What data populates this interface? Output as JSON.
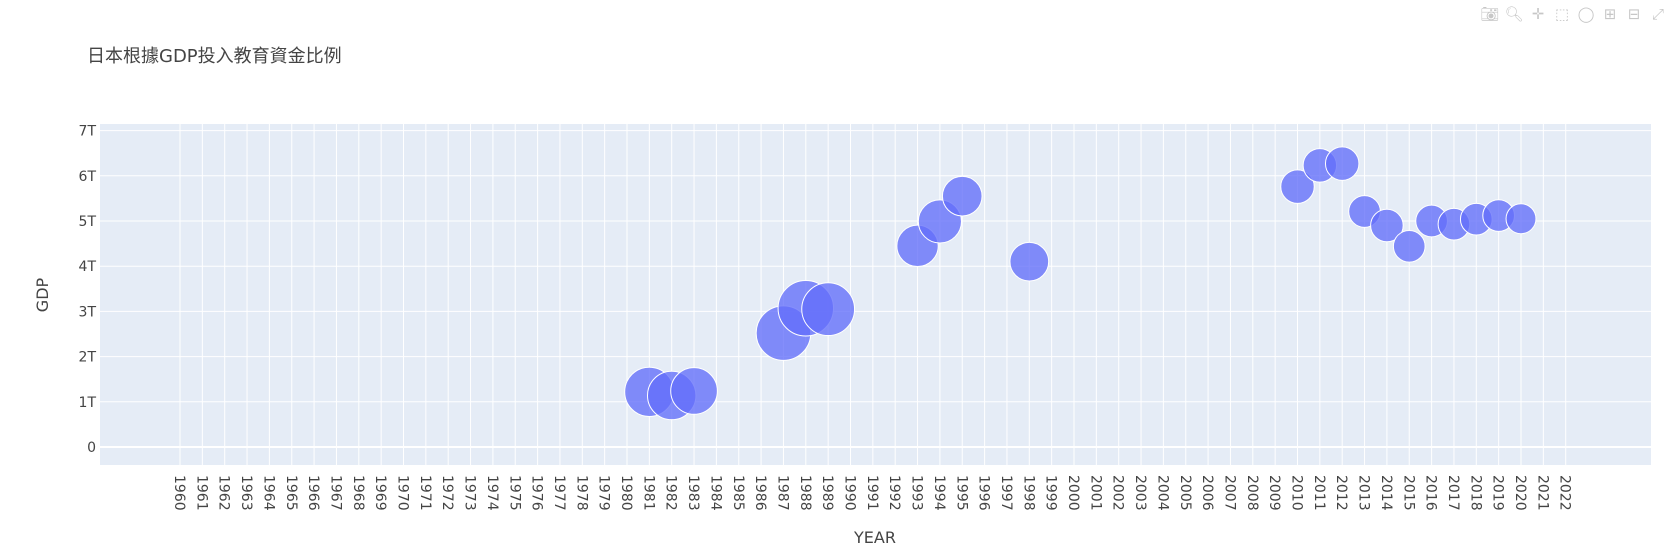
{
  "toolbar": {
    "icons": [
      "camera-icon",
      "zoom-icon",
      "pan-icon",
      "box-select-icon",
      "lasso-icon",
      "zoom-in-icon",
      "zoom-out-icon",
      "autoscale-icon"
    ]
  },
  "chart_data": {
    "type": "scatter",
    "title": "日本根據GDP投入教育資金比例",
    "xlabel": "YEAR",
    "ylabel": "GDP",
    "x_categories": [
      "1960",
      "1961",
      "1962",
      "1963",
      "1964",
      "1965",
      "1966",
      "1967",
      "1968",
      "1969",
      "1970",
      "1971",
      "1972",
      "1973",
      "1974",
      "1975",
      "1976",
      "1977",
      "1978",
      "1979",
      "1980",
      "1981",
      "1982",
      "1983",
      "1984",
      "1985",
      "1986",
      "1987",
      "1988",
      "1989",
      "1990",
      "1991",
      "1992",
      "1993",
      "1994",
      "1995",
      "1996",
      "1997",
      "1998",
      "1999",
      "2000",
      "2001",
      "2002",
      "2003",
      "2004",
      "2005",
      "2006",
      "2007",
      "2008",
      "2009",
      "2010",
      "2011",
      "2012",
      "2013",
      "2014",
      "2015",
      "2016",
      "2017",
      "2018",
      "2019",
      "2020",
      "2021",
      "2022"
    ],
    "y_ticks": [
      0,
      1,
      2,
      3,
      4,
      5,
      6,
      7
    ],
    "y_tick_labels": [
      "0",
      "1T",
      "2T",
      "3T",
      "4T",
      "5T",
      "6T",
      "7T"
    ],
    "ylim": [
      -0.4,
      7.1
    ],
    "marker_color": "#636efa",
    "grid": true,
    "points": [
      {
        "x": "1981",
        "y": 1.22,
        "size": 5.6
      },
      {
        "x": "1982",
        "y": 1.14,
        "size": 5.5
      },
      {
        "x": "1983",
        "y": 1.24,
        "size": 5.3
      },
      {
        "x": "1987",
        "y": 2.52,
        "size": 6.2
      },
      {
        "x": "1988",
        "y": 3.07,
        "size": 6.3
      },
      {
        "x": "1989",
        "y": 3.05,
        "size": 6.0
      },
      {
        "x": "1993",
        "y": 4.45,
        "size": 4.7
      },
      {
        "x": "1994",
        "y": 4.99,
        "size": 4.9
      },
      {
        "x": "1995",
        "y": 5.55,
        "size": 4.5
      },
      {
        "x": "1998",
        "y": 4.1,
        "size": 4.4
      },
      {
        "x": "2010",
        "y": 5.76,
        "size": 3.8
      },
      {
        "x": "2011",
        "y": 6.23,
        "size": 3.8
      },
      {
        "x": "2012",
        "y": 6.27,
        "size": 3.8
      },
      {
        "x": "2013",
        "y": 5.21,
        "size": 3.6
      },
      {
        "x": "2014",
        "y": 4.9,
        "size": 3.7
      },
      {
        "x": "2015",
        "y": 4.44,
        "size": 3.6
      },
      {
        "x": "2016",
        "y": 5.0,
        "size": 3.6
      },
      {
        "x": "2017",
        "y": 4.93,
        "size": 3.6
      },
      {
        "x": "2018",
        "y": 5.04,
        "size": 3.6
      },
      {
        "x": "2019",
        "y": 5.12,
        "size": 3.6
      },
      {
        "x": "2020",
        "y": 5.05,
        "size": 3.4
      }
    ]
  }
}
